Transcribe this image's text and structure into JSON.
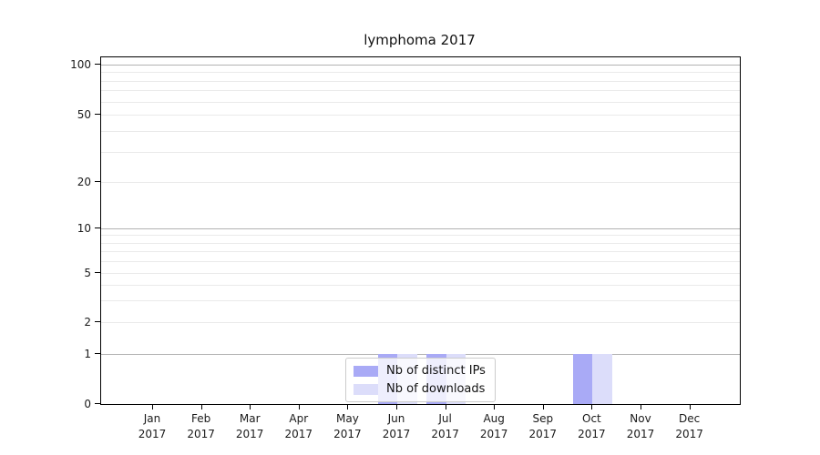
{
  "title": "lymphoma 2017",
  "chart_data": {
    "type": "bar",
    "title": "lymphoma 2017",
    "xlabel": "",
    "ylabel": "",
    "x_months": [
      "Jan",
      "Feb",
      "Mar",
      "Apr",
      "May",
      "Jun",
      "Jul",
      "Aug",
      "Sep",
      "Oct",
      "Nov",
      "Dec"
    ],
    "x_year": "2017",
    "y_scale": "log-like with ticks 0,1,2,5,10,20,50,100",
    "yticks": [
      0,
      1,
      2,
      5,
      10,
      20,
      50,
      100
    ],
    "ylim": [
      0,
      110
    ],
    "grid": true,
    "legend_position": "inside-bottom-center",
    "series": [
      {
        "name": "Nb of distinct IPs",
        "color": "#a9aaf6",
        "values": [
          0,
          0,
          0,
          0,
          0,
          1,
          1,
          0,
          0,
          1,
          0,
          0
        ]
      },
      {
        "name": "Nb of downloads",
        "color": "#dcddfa",
        "values": [
          0,
          0,
          0,
          0,
          0,
          1,
          1,
          0,
          0,
          1,
          0,
          0
        ]
      }
    ]
  },
  "colors": {
    "axis": "#000000",
    "gridline_major": "#b3b3b3",
    "gridline_minor": "#eaeaea",
    "background": "#ffffff"
  }
}
